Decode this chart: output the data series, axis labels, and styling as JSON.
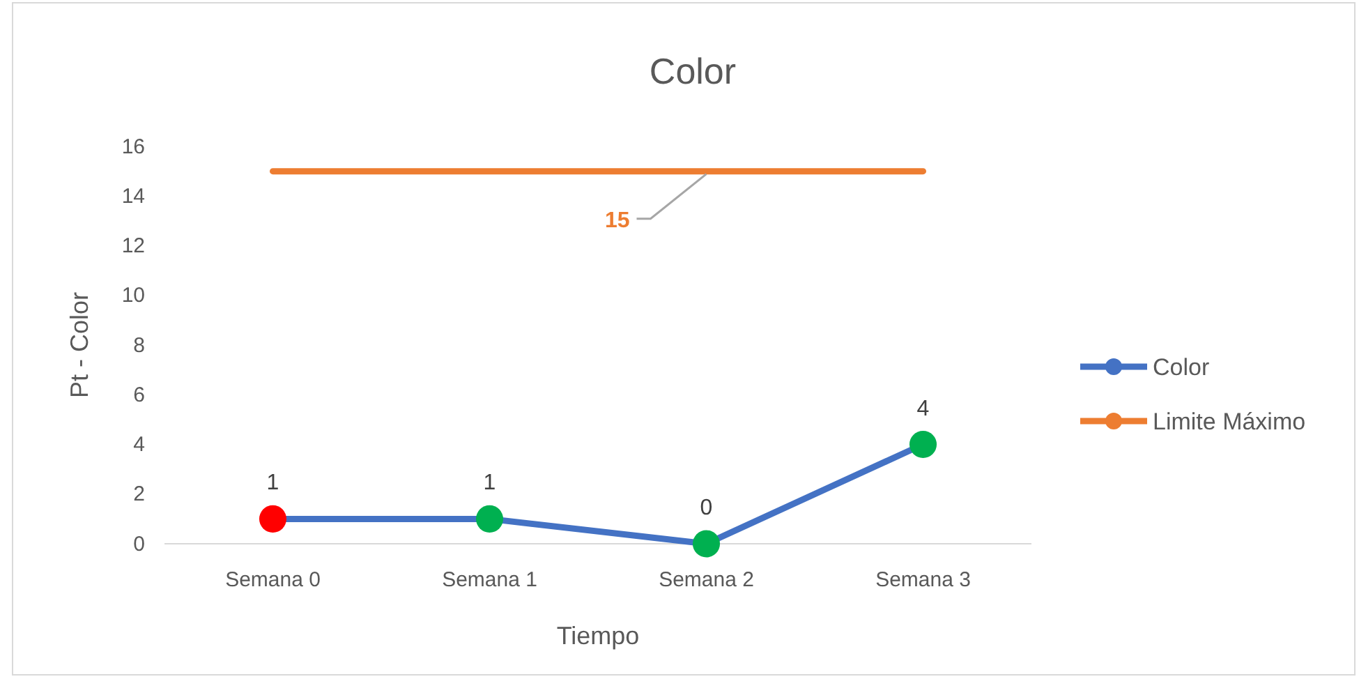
{
  "chart_data": {
    "type": "line",
    "title": "Color",
    "xlabel": "Tiempo",
    "ylabel": "Pt - Color",
    "categories": [
      "Semana 0",
      "Semana 1",
      "Semana 2",
      "Semana 3"
    ],
    "series": [
      {
        "name": "Color",
        "color": "#4472c4",
        "values": [
          1,
          1,
          0,
          4
        ],
        "colors": [
          "#ff0000",
          "#00b050",
          "#00b050",
          "#00b050"
        ],
        "marker": "circle",
        "value_labels": [
          "1",
          "1",
          "0",
          "4"
        ]
      },
      {
        "name": "Limite Máximo",
        "color": "#ed7d31",
        "values": [
          15,
          15,
          15,
          15
        ],
        "marker": "none",
        "value_labels": [
          null,
          null,
          "15",
          null
        ]
      }
    ],
    "ylim": [
      0,
      16
    ],
    "yticks": [
      0,
      2,
      4,
      6,
      8,
      10,
      12,
      14,
      16
    ],
    "grid": false,
    "legend": "right"
  }
}
